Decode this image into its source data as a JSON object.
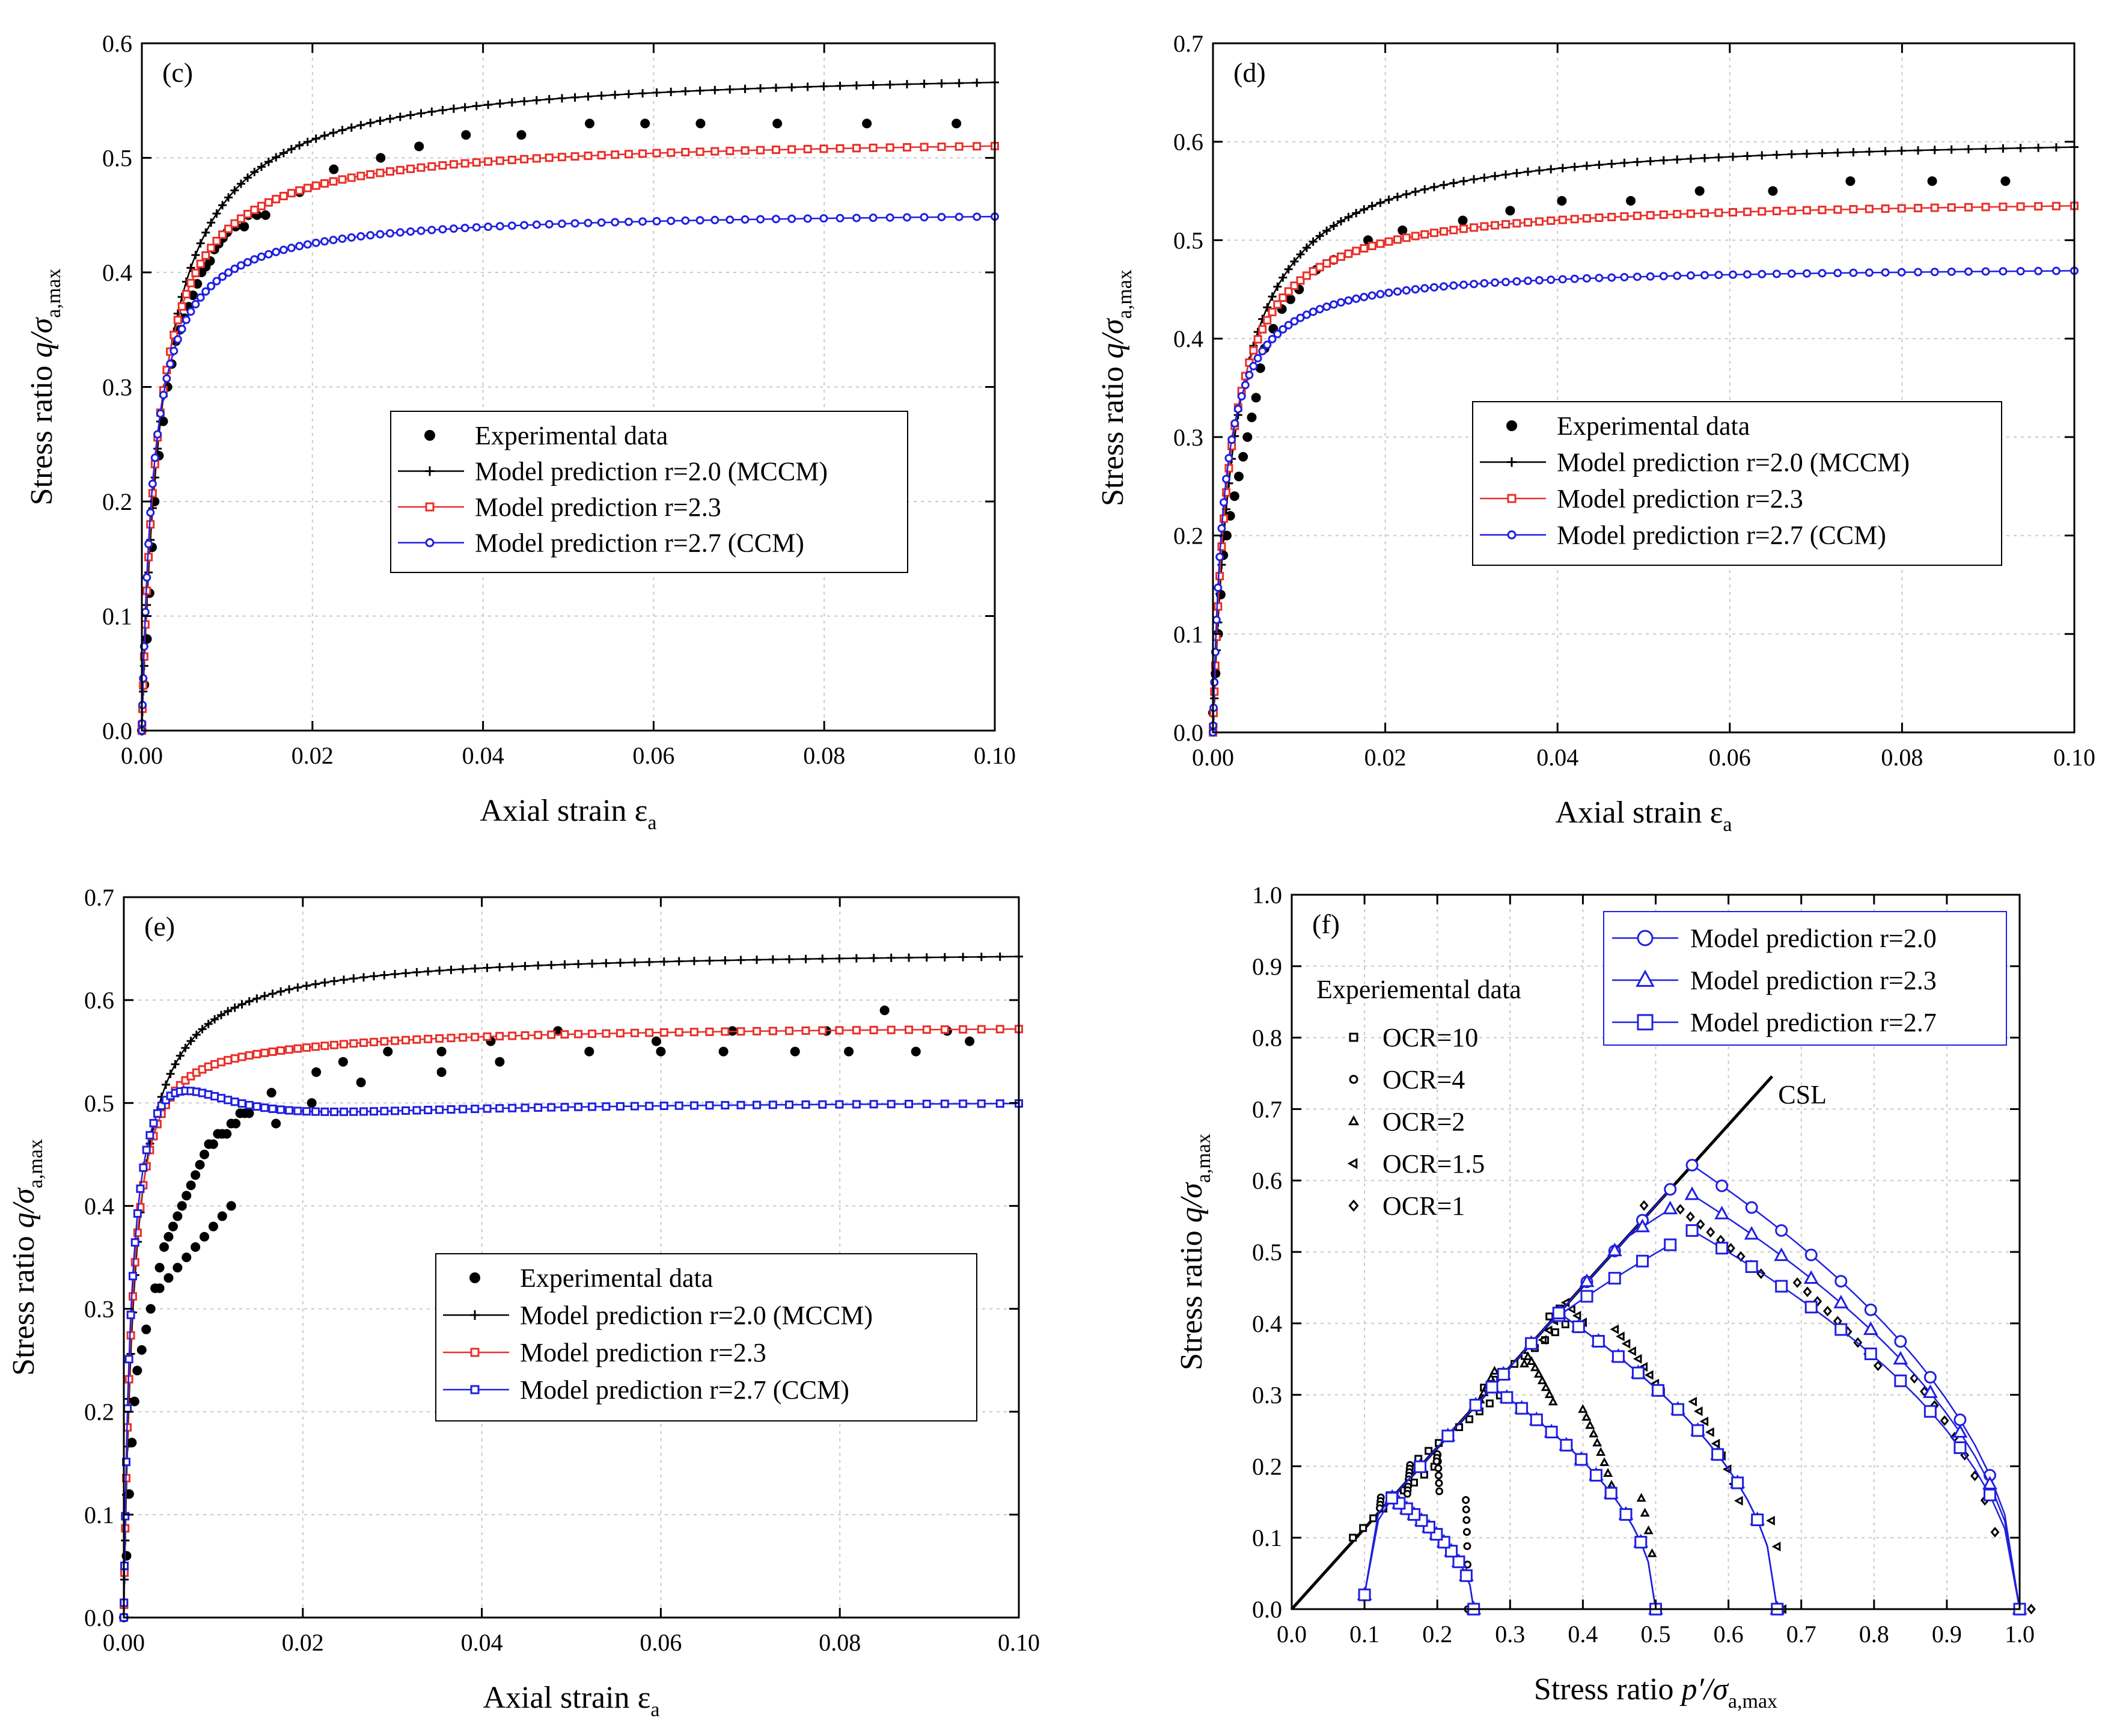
{
  "chart_data": [
    {
      "panel": "(c)",
      "type": "scatter",
      "xlabel": "Axial strain",
      "xlabel_symbol": "ε",
      "xlabel_sub": "a",
      "ylabel": "Stress ratio",
      "ylabel_symbol": "q/σ",
      "ylabel_sub": "a,max",
      "xlim": [
        0,
        0.1
      ],
      "ylim": [
        0,
        0.6
      ],
      "xticks": [
        0,
        0.02,
        0.04,
        0.06,
        0.08,
        0.1
      ],
      "xtick_labels": [
        "0.00",
        "0.02",
        "0.04",
        "0.06",
        "0.08",
        "0.10"
      ],
      "yticks": [
        0,
        0.1,
        0.2,
        0.3,
        0.4,
        0.5,
        0.6
      ],
      "ytick_labels": [
        "0.0",
        "0.1",
        "0.2",
        "0.3",
        "0.4",
        "0.5",
        "0.6"
      ],
      "legend_position": "middle-right",
      "series": [
        {
          "name": "Experimental data",
          "marker": "dot",
          "color": "#000000",
          "x": [
            0,
            0.0003,
            0.0006,
            0.0009,
            0.0012,
            0.0015,
            0.002,
            0.0025,
            0.003,
            0.0035,
            0.004,
            0.0045,
            0.005,
            0.0055,
            0.006,
            0.0065,
            0.007,
            0.0075,
            0.008,
            0.0085,
            0.009,
            0.0095,
            0.01,
            0.011,
            0.012,
            0.0125,
            0.0135,
            0.0145,
            0.0185,
            0.0225,
            0.028,
            0.0325,
            0.038,
            0.0445,
            0.0525,
            0.059,
            0.0655,
            0.0745,
            0.085,
            0.0955
          ],
          "y": [
            0,
            0.04,
            0.08,
            0.12,
            0.16,
            0.2,
            0.24,
            0.27,
            0.3,
            0.32,
            0.34,
            0.35,
            0.36,
            0.37,
            0.38,
            0.39,
            0.4,
            0.405,
            0.41,
            0.42,
            0.425,
            0.43,
            0.435,
            0.44,
            0.44,
            0.45,
            0.45,
            0.45,
            0.47,
            0.49,
            0.5,
            0.51,
            0.52,
            0.52,
            0.53,
            0.53,
            0.53,
            0.53,
            0.53,
            0.53
          ]
        },
        {
          "name": "Model prediction r=2.0 (MCCM)",
          "marker": "plus",
          "color": "#000000",
          "y0": 0.58,
          "a": 0.0025
        },
        {
          "name": "Model prediction r=2.3",
          "marker": "square",
          "color": "#e8302a",
          "y0": 0.52,
          "a": 0.0019
        },
        {
          "name": "Model prediction r=2.7 (CCM)",
          "marker": "circle",
          "color": "#1f1fe0",
          "y0": 0.455,
          "a": 0.0014
        }
      ]
    },
    {
      "panel": "(d)",
      "type": "scatter",
      "xlabel": "Axial strain",
      "xlabel_symbol": "ε",
      "xlabel_sub": "a",
      "ylabel": "Stress ratio",
      "ylabel_symbol": "q/σ",
      "ylabel_sub": "a,max",
      "xlim": [
        0,
        0.1
      ],
      "ylim": [
        0,
        0.7
      ],
      "xticks": [
        0,
        0.02,
        0.04,
        0.06,
        0.08,
        0.1
      ],
      "xtick_labels": [
        "0.00",
        "0.02",
        "0.04",
        "0.06",
        "0.08",
        "0.10"
      ],
      "yticks": [
        0,
        0.1,
        0.2,
        0.3,
        0.4,
        0.5,
        0.6,
        0.7
      ],
      "ytick_labels": [
        "0.0",
        "0.1",
        "0.2",
        "0.3",
        "0.4",
        "0.5",
        "0.6",
        "0.7"
      ],
      "legend_position": "middle-right",
      "series": [
        {
          "name": "Experimental data",
          "marker": "dot",
          "color": "#000000",
          "x": [
            0,
            0.0003,
            0.0006,
            0.0009,
            0.0012,
            0.0016,
            0.002,
            0.0025,
            0.003,
            0.0035,
            0.004,
            0.0045,
            0.005,
            0.0055,
            0.006,
            0.007,
            0.008,
            0.009,
            0.01,
            0.012,
            0.014,
            0.018,
            0.022,
            0.029,
            0.0345,
            0.0405,
            0.0485,
            0.0565,
            0.065,
            0.074,
            0.0835,
            0.092
          ],
          "y": [
            0.02,
            0.06,
            0.1,
            0.14,
            0.18,
            0.2,
            0.22,
            0.24,
            0.26,
            0.28,
            0.3,
            0.32,
            0.34,
            0.37,
            0.39,
            0.41,
            0.43,
            0.44,
            0.45,
            0.47,
            0.48,
            0.5,
            0.51,
            0.52,
            0.53,
            0.54,
            0.54,
            0.55,
            0.55,
            0.56,
            0.56,
            0.56
          ]
        },
        {
          "name": "Model prediction r=2.0 (MCCM)",
          "marker": "plus",
          "color": "#000000",
          "y0": 0.61,
          "a": 0.0026
        },
        {
          "name": "Model prediction r=2.3",
          "marker": "square",
          "color": "#e8302a",
          "y0": 0.545,
          "a": 0.0019
        },
        {
          "name": "Model prediction r=2.7 (CCM)",
          "marker": "circle",
          "color": "#1f1fe0",
          "y0": 0.475,
          "a": 0.0013
        }
      ]
    },
    {
      "panel": "(e)",
      "type": "scatter",
      "xlabel": "Axial strain",
      "xlabel_symbol": "ε",
      "xlabel_sub": "a",
      "ylabel": "Stress ratio",
      "ylabel_symbol": "q/σ",
      "ylabel_sub": "a,max",
      "xlim": [
        0,
        0.1
      ],
      "ylim": [
        0,
        0.7
      ],
      "xticks": [
        0,
        0.02,
        0.04,
        0.06,
        0.08,
        0.1
      ],
      "xtick_labels": [
        "0.00",
        "0.02",
        "0.04",
        "0.06",
        "0.08",
        "0.10"
      ],
      "yticks": [
        0,
        0.1,
        0.2,
        0.3,
        0.4,
        0.5,
        0.6,
        0.7
      ],
      "ytick_labels": [
        "0.0",
        "0.1",
        "0.2",
        "0.3",
        "0.4",
        "0.5",
        "0.6",
        "0.7"
      ],
      "legend_position": "lower-right",
      "series": [
        {
          "name": "Experimental data",
          "marker": "dot",
          "color": "#000000",
          "x": [
            0,
            0.0003,
            0.0006,
            0.0009,
            0.0012,
            0.0015,
            0.002,
            0.0025,
            0.003,
            0.0035,
            0.004,
            0.0045,
            0.005,
            0.0055,
            0.006,
            0.0065,
            0.007,
            0.0075,
            0.008,
            0.0085,
            0.009,
            0.0095,
            0.01,
            0.0105,
            0.011,
            0.0115,
            0.012,
            0.0125,
            0.013,
            0.0135,
            0.014,
            0.004,
            0.005,
            0.006,
            0.007,
            0.008,
            0.009,
            0.01,
            0.011,
            0.012,
            0.0165,
            0.017,
            0.021,
            0.0215,
            0.0245,
            0.0265,
            0.0295,
            0.0355,
            0.0355,
            0.041,
            0.042,
            0.0485,
            0.052,
            0.0595,
            0.06,
            0.067,
            0.068,
            0.075,
            0.0785,
            0.081,
            0.085,
            0.0885,
            0.092,
            0.0945
          ],
          "y": [
            0,
            0.06,
            0.12,
            0.17,
            0.21,
            0.24,
            0.26,
            0.28,
            0.3,
            0.32,
            0.34,
            0.36,
            0.37,
            0.38,
            0.39,
            0.4,
            0.41,
            0.42,
            0.43,
            0.44,
            0.45,
            0.46,
            0.46,
            0.47,
            0.47,
            0.47,
            0.48,
            0.48,
            0.49,
            0.49,
            0.49,
            0.32,
            0.33,
            0.34,
            0.35,
            0.36,
            0.37,
            0.38,
            0.39,
            0.4,
            0.51,
            0.48,
            0.5,
            0.53,
            0.54,
            0.52,
            0.55,
            0.55,
            0.53,
            0.56,
            0.54,
            0.57,
            0.55,
            0.56,
            0.55,
            0.55,
            0.57,
            0.55,
            0.57,
            0.55,
            0.59,
            0.55,
            0.57,
            0.56
          ]
        },
        {
          "name": "Model prediction r=2.0 (MCCM)",
          "marker": "plus",
          "color": "#000000",
          "y0": 0.65,
          "a": 0.0012,
          "peak": 0
        },
        {
          "name": "Model prediction r=2.3",
          "marker": "square",
          "color": "#e8302a",
          "y0": 0.577,
          "a": 0.0009,
          "peak": 0.007
        },
        {
          "name": "Model prediction r=2.7 (CCM)",
          "marker": "square",
          "color": "#1f1fe0",
          "y0": 0.503,
          "a": 0.0007,
          "peak": 0.033
        }
      ]
    },
    {
      "panel": "(f)",
      "type": "scatter",
      "xlabel": "Stress ratio",
      "xlabel_symbol": "p′/σ",
      "xlabel_sub": "a,max",
      "ylabel": "Stress ratio",
      "ylabel_symbol": "q/σ",
      "ylabel_sub": "a,max",
      "xlim": [
        0,
        1
      ],
      "ylim": [
        0,
        1
      ],
      "xticks": [
        0,
        0.1,
        0.2,
        0.3,
        0.4,
        0.5,
        0.6,
        0.7,
        0.8,
        0.9,
        1
      ],
      "xtick_labels": [
        "0.0",
        "0.1",
        "0.2",
        "0.3",
        "0.4",
        "0.5",
        "0.6",
        "0.7",
        "0.8",
        "0.9",
        "1.0"
      ],
      "yticks": [
        0,
        0.1,
        0.2,
        0.3,
        0.4,
        0.5,
        0.6,
        0.7,
        0.8,
        0.9,
        1
      ],
      "ytick_labels": [
        "0.0",
        "0.1",
        "0.2",
        "0.3",
        "0.4",
        "0.5",
        "0.6",
        "0.7",
        "0.8",
        "0.9",
        "1.0"
      ],
      "legend_position": "top-right",
      "csl": {
        "label": "CSL",
        "slope": 1.13,
        "x_end": 0.66
      },
      "start_points": [
        0.1,
        0.25,
        0.5,
        0.667,
        1.0
      ],
      "series": [
        {
          "name": "Model prediction r=2.0",
          "marker": "circle",
          "color": "#1f1fe0",
          "peak_ratio": 0.65
        },
        {
          "name": "Model prediction r=2.3",
          "marker": "triangle",
          "color": "#1f1fe0",
          "peak_ratio": 0.58
        },
        {
          "name": "Model prediction r=2.7",
          "marker": "square",
          "color": "#1f1fe0",
          "peak_ratio": 0.53
        }
      ],
      "experimental_title": "Experiemental data",
      "experimental": [
        {
          "name": "OCR=10",
          "marker": "square",
          "start": 0.1
        },
        {
          "name": "OCR=4",
          "marker": "circle",
          "start": 0.25
        },
        {
          "name": "OCR=2",
          "marker": "triangle",
          "start": 0.5
        },
        {
          "name": "OCR=1.5",
          "marker": "tri-left",
          "start": 0.667
        },
        {
          "name": "OCR=1",
          "marker": "diamond",
          "start": 1.0
        }
      ]
    }
  ]
}
